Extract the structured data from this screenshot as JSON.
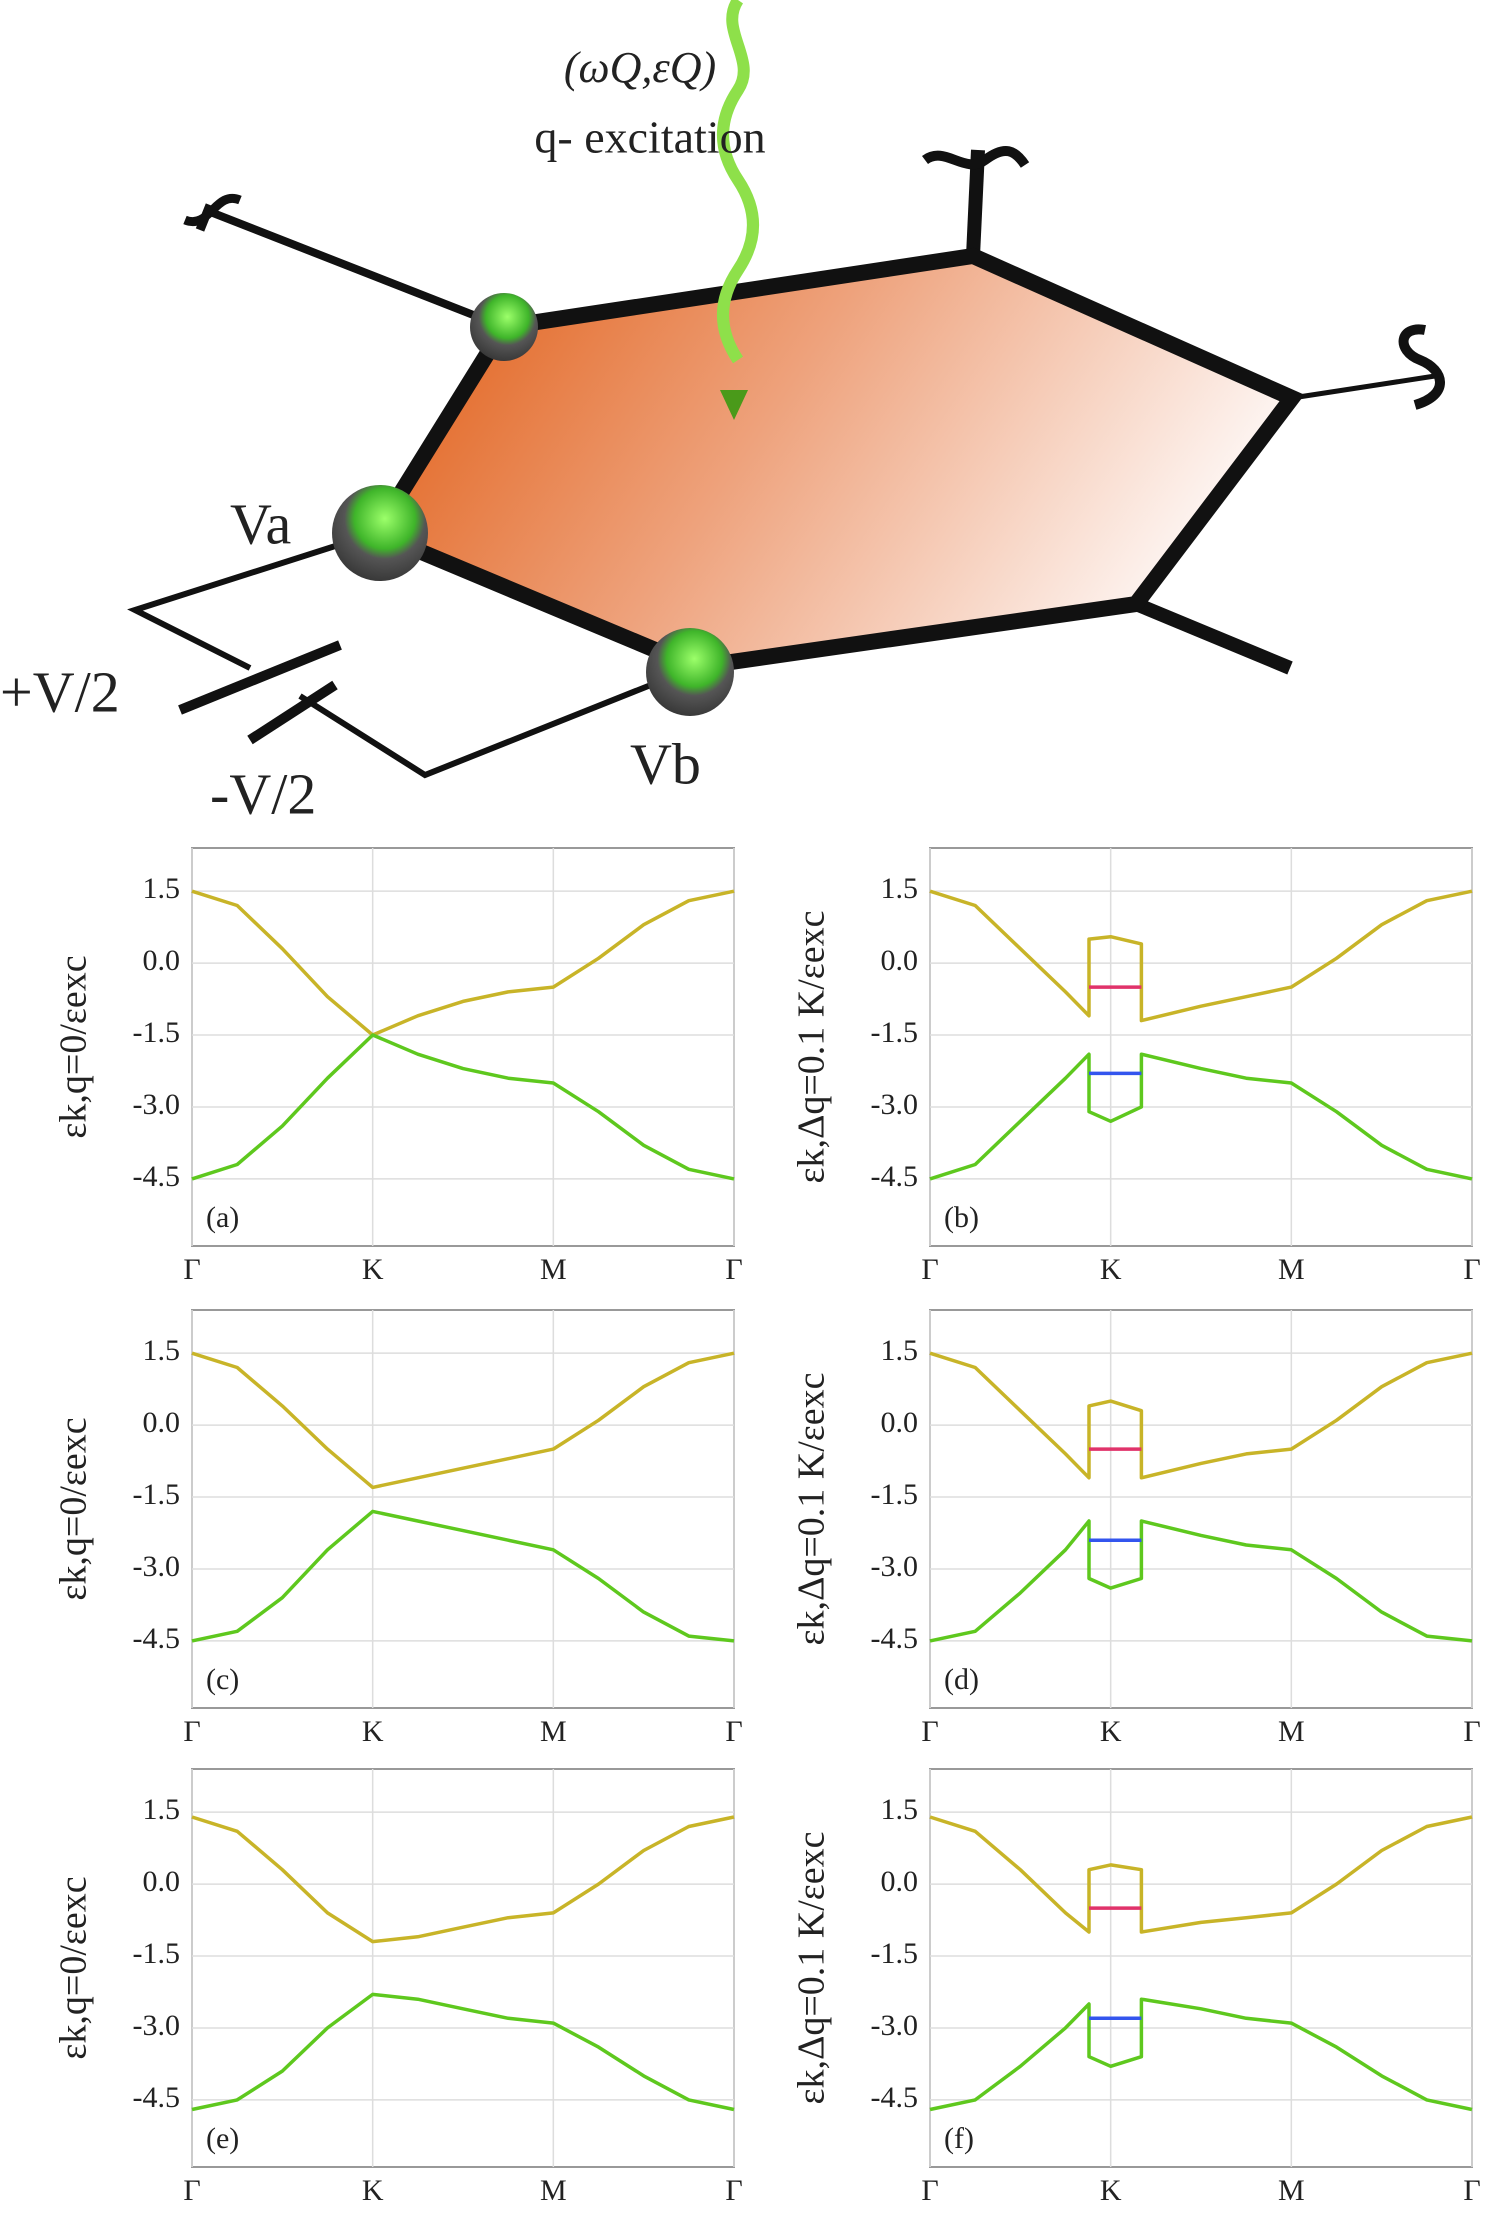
{
  "diagram": {
    "wave_label": "(ωQ,εQ)",
    "excitation_label": "q- excitation",
    "va": "Va",
    "vb": "Vb",
    "plus": "+V/2",
    "minus": "-V/2"
  },
  "chart_data": [
    {
      "type": "line",
      "panel": "(a)",
      "ylabel": "εk,q=0/εexc",
      "x": [
        0,
        0.25,
        0.5,
        0.75,
        1,
        1.25,
        1.5,
        1.75,
        2,
        2.25,
        2.5,
        2.75,
        3
      ],
      "series": [
        {
          "color": "#c8b428",
          "values": [
            1.5,
            1.2,
            0.3,
            -0.7,
            -1.5,
            -1.1,
            -0.8,
            -0.6,
            -0.5,
            0.1,
            0.8,
            1.3,
            1.5
          ]
        },
        {
          "color": "#5ec81e",
          "values": [
            -4.5,
            -4.2,
            -3.4,
            -2.4,
            -1.5,
            -1.9,
            -2.2,
            -2.4,
            -2.5,
            -3.1,
            -3.8,
            -4.3,
            -4.5
          ]
        }
      ],
      "xlim": [
        0,
        3
      ],
      "xticks": [
        {
          "value": 0,
          "label": "Γ"
        },
        {
          "value": 1,
          "label": "K"
        },
        {
          "value": 2,
          "label": "M"
        },
        {
          "value": 3,
          "label": "Γ"
        }
      ],
      "ylim": [
        -5.9,
        2.4
      ],
      "yticks": [
        1.5,
        {
          "value": 0,
          "label": "0.0"
        },
        -1.5,
        {
          "value": -3,
          "label": "-3.0"
        },
        -4.5
      ],
      "grid": true
    },
    {
      "type": "line",
      "panel": "(b)",
      "ylabel": "εk,Δq=0.1 K/εexc",
      "x": [
        0,
        0.25,
        0.5,
        0.75,
        0.88,
        0.88,
        1,
        1.17,
        1.17,
        1.5,
        1.75,
        2,
        2.25,
        2.5,
        2.75,
        3
      ],
      "series": [
        {
          "color": "#c8b428",
          "values": [
            1.5,
            1.2,
            0.3,
            -0.6,
            -1.1,
            0.5,
            0.55,
            0.4,
            -1.2,
            -0.9,
            -0.7,
            -0.5,
            0.1,
            0.8,
            1.3,
            1.5
          ]
        },
        {
          "color": "#5ec81e",
          "values": [
            -4.5,
            -4.2,
            -3.3,
            -2.4,
            -1.9,
            -3.1,
            -3.3,
            -3.0,
            -1.9,
            -2.2,
            -2.4,
            -2.5,
            -3.1,
            -3.8,
            -4.3,
            -4.5
          ]
        },
        {
          "color": "#e0336a",
          "values": [
            null,
            null,
            null,
            null,
            null,
            -0.5,
            -0.5,
            -0.5,
            null,
            null,
            null,
            null,
            null,
            null,
            null,
            null
          ]
        },
        {
          "color": "#3355ee",
          "values": [
            null,
            null,
            null,
            null,
            null,
            -2.3,
            -2.3,
            -2.3,
            null,
            null,
            null,
            null,
            null,
            null,
            null,
            null
          ]
        }
      ],
      "xlim": [
        0,
        3
      ],
      "xticks": [
        {
          "value": 0,
          "label": "Γ"
        },
        {
          "value": 1,
          "label": "K"
        },
        {
          "value": 2,
          "label": "M"
        },
        {
          "value": 3,
          "label": "Γ"
        }
      ],
      "ylim": [
        -5.9,
        2.4
      ],
      "yticks": [
        1.5,
        {
          "value": 0,
          "label": "0.0"
        },
        -1.5,
        {
          "value": -3,
          "label": "-3.0"
        },
        -4.5
      ],
      "grid": true
    },
    {
      "type": "line",
      "panel": "(c)",
      "ylabel": "εk,q=0/εexc",
      "x": [
        0,
        0.25,
        0.5,
        0.75,
        1,
        1.25,
        1.5,
        1.75,
        2,
        2.25,
        2.5,
        2.75,
        3
      ],
      "series": [
        {
          "color": "#c8b428",
          "values": [
            1.5,
            1.2,
            0.4,
            -0.5,
            -1.3,
            -1.1,
            -0.9,
            -0.7,
            -0.5,
            0.1,
            0.8,
            1.3,
            1.5
          ]
        },
        {
          "color": "#5ec81e",
          "values": [
            -4.5,
            -4.3,
            -3.6,
            -2.6,
            -1.8,
            -2.0,
            -2.2,
            -2.4,
            -2.6,
            -3.2,
            -3.9,
            -4.4,
            -4.5
          ]
        }
      ],
      "xlim": [
        0,
        3
      ],
      "xticks": [
        {
          "value": 0,
          "label": "Γ"
        },
        {
          "value": 1,
          "label": "K"
        },
        {
          "value": 2,
          "label": "M"
        },
        {
          "value": 3,
          "label": "Γ"
        }
      ],
      "ylim": [
        -5.9,
        2.4
      ],
      "yticks": [
        1.5,
        {
          "value": 0,
          "label": "0.0"
        },
        -1.5,
        {
          "value": -3,
          "label": "-3.0"
        },
        -4.5
      ],
      "grid": true
    },
    {
      "type": "line",
      "panel": "(d)",
      "ylabel": "εk,Δq=0.1 K/εexc",
      "x": [
        0,
        0.25,
        0.5,
        0.75,
        0.88,
        0.88,
        1,
        1.17,
        1.17,
        1.5,
        1.75,
        2,
        2.25,
        2.5,
        2.75,
        3
      ],
      "series": [
        {
          "color": "#c8b428",
          "values": [
            1.5,
            1.2,
            0.3,
            -0.6,
            -1.1,
            0.4,
            0.5,
            0.3,
            -1.1,
            -0.8,
            -0.6,
            -0.5,
            0.1,
            0.8,
            1.3,
            1.5
          ]
        },
        {
          "color": "#5ec81e",
          "values": [
            -4.5,
            -4.3,
            -3.5,
            -2.6,
            -2.0,
            -3.2,
            -3.4,
            -3.2,
            -2.0,
            -2.3,
            -2.5,
            -2.6,
            -3.2,
            -3.9,
            -4.4,
            -4.5
          ]
        },
        {
          "color": "#e0336a",
          "values": [
            null,
            null,
            null,
            null,
            null,
            -0.5,
            -0.5,
            -0.5,
            null,
            null,
            null,
            null,
            null,
            null,
            null,
            null
          ]
        },
        {
          "color": "#3355ee",
          "values": [
            null,
            null,
            null,
            null,
            null,
            -2.4,
            -2.4,
            -2.4,
            null,
            null,
            null,
            null,
            null,
            null,
            null,
            null
          ]
        }
      ],
      "xlim": [
        0,
        3
      ],
      "xticks": [
        {
          "value": 0,
          "label": "Γ"
        },
        {
          "value": 1,
          "label": "K"
        },
        {
          "value": 2,
          "label": "M"
        },
        {
          "value": 3,
          "label": "Γ"
        }
      ],
      "ylim": [
        -5.9,
        2.4
      ],
      "yticks": [
        1.5,
        {
          "value": 0,
          "label": "0.0"
        },
        -1.5,
        {
          "value": -3,
          "label": "-3.0"
        },
        -4.5
      ],
      "grid": true
    },
    {
      "type": "line",
      "panel": "(e)",
      "ylabel": "εk,q=0/εexc",
      "x": [
        0,
        0.25,
        0.5,
        0.75,
        1,
        1.25,
        1.5,
        1.75,
        2,
        2.25,
        2.5,
        2.75,
        3
      ],
      "series": [
        {
          "color": "#c8b428",
          "values": [
            1.4,
            1.1,
            0.3,
            -0.6,
            -1.2,
            -1.1,
            -0.9,
            -0.7,
            -0.6,
            0.0,
            0.7,
            1.2,
            1.4
          ]
        },
        {
          "color": "#5ec81e",
          "values": [
            -4.7,
            -4.5,
            -3.9,
            -3.0,
            -2.3,
            -2.4,
            -2.6,
            -2.8,
            -2.9,
            -3.4,
            -4.0,
            -4.5,
            -4.7
          ]
        }
      ],
      "xlim": [
        0,
        3
      ],
      "xticks": [
        {
          "value": 0,
          "label": "Γ"
        },
        {
          "value": 1,
          "label": "K"
        },
        {
          "value": 2,
          "label": "M"
        },
        {
          "value": 3,
          "label": "Γ"
        }
      ],
      "ylim": [
        -5.9,
        2.4
      ],
      "yticks": [
        1.5,
        {
          "value": 0,
          "label": "0.0"
        },
        -1.5,
        {
          "value": -3,
          "label": "-3.0"
        },
        -4.5
      ],
      "grid": true
    },
    {
      "type": "line",
      "panel": "(f)",
      "ylabel": "εk,Δq=0.1 K/εexc",
      "x": [
        0,
        0.25,
        0.5,
        0.75,
        0.88,
        0.88,
        1,
        1.17,
        1.17,
        1.5,
        1.75,
        2,
        2.25,
        2.5,
        2.75,
        3
      ],
      "series": [
        {
          "color": "#c8b428",
          "values": [
            1.4,
            1.1,
            0.3,
            -0.6,
            -1.0,
            0.3,
            0.4,
            0.3,
            -1.0,
            -0.8,
            -0.7,
            -0.6,
            0.0,
            0.7,
            1.2,
            1.4
          ]
        },
        {
          "color": "#5ec81e",
          "values": [
            -4.7,
            -4.5,
            -3.8,
            -3.0,
            -2.5,
            -3.6,
            -3.8,
            -3.6,
            -2.4,
            -2.6,
            -2.8,
            -2.9,
            -3.4,
            -4.0,
            -4.5,
            -4.7
          ]
        },
        {
          "color": "#e0336a",
          "values": [
            null,
            null,
            null,
            null,
            null,
            -0.5,
            -0.5,
            -0.5,
            null,
            null,
            null,
            null,
            null,
            null,
            null,
            null
          ]
        },
        {
          "color": "#3355ee",
          "values": [
            null,
            null,
            null,
            null,
            null,
            -2.8,
            -2.8,
            -2.8,
            null,
            null,
            null,
            null,
            null,
            null,
            null,
            null
          ]
        }
      ],
      "xlim": [
        0,
        3
      ],
      "xticks": [
        {
          "value": 0,
          "label": "Γ"
        },
        {
          "value": 1,
          "label": "K"
        },
        {
          "value": 2,
          "label": "M"
        },
        {
          "value": 3,
          "label": "Γ"
        }
      ],
      "ylim": [
        -5.9,
        2.4
      ],
      "yticks": [
        1.5,
        {
          "value": 0,
          "label": "0.0"
        },
        -1.5,
        {
          "value": -3,
          "label": "-3.0"
        },
        -4.5
      ],
      "grid": true
    }
  ]
}
